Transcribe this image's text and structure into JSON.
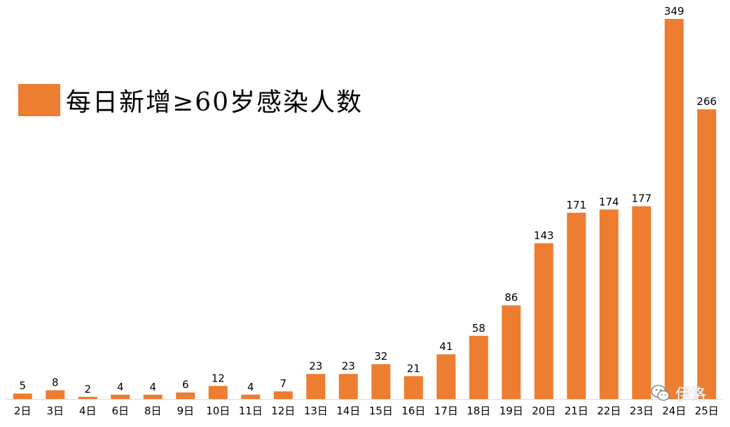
{
  "chart_data": {
    "type": "bar",
    "legend": "每日新增≥60岁感染人数",
    "categories": [
      "2日",
      "3日",
      "4日",
      "6日",
      "8日",
      "9日",
      "10日",
      "11日",
      "12日",
      "13日",
      "14日",
      "15日",
      "16日",
      "17日",
      "18日",
      "19日",
      "20日",
      "21日",
      "22日",
      "23日",
      "24日",
      "25日"
    ],
    "values": [
      5,
      8,
      2,
      4,
      4,
      6,
      12,
      4,
      7,
      23,
      23,
      32,
      21,
      41,
      58,
      86,
      143,
      171,
      174,
      177,
      349,
      266
    ],
    "ylim": [
      0,
      349
    ],
    "grid": false,
    "bar_color": "#ED7D31"
  },
  "watermark": {
    "text": "伊洛",
    "icon": "wechat-icon"
  }
}
